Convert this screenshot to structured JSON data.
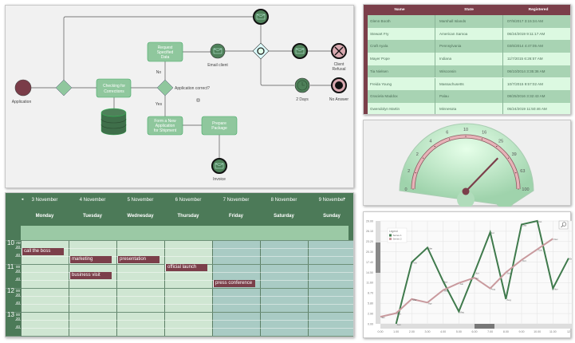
{
  "diagram": {
    "start": "Application",
    "check": [
      "Checking for",
      "Corrections"
    ],
    "request": [
      "Request",
      "Specified",
      "Data"
    ],
    "form": [
      "Form a New",
      "Application",
      "for Shipment"
    ],
    "prepare": [
      "Prepare",
      "Package"
    ],
    "invoice": "Invoice",
    "email": "Email client",
    "question": "Application correct?",
    "no": "No",
    "yes": "Yes",
    "refusal": [
      "Client",
      "Refusal"
    ],
    "timer": "2 Days",
    "noanswer": "No Answer"
  },
  "grid": {
    "columns": [
      "Name",
      "State",
      "Registered"
    ],
    "rows": [
      [
        "Glenn Booth",
        "Marshall Islands",
        "07/9/2017 3:15:34 AM"
      ],
      [
        "Stewart Fry",
        "American Samoa",
        "06/24/2019 9:11:17 AM"
      ],
      [
        "Craft Ayala",
        "Pennsylvania",
        "03/6/2014 4:47:05 AM"
      ],
      [
        "Mayer Pope",
        "Indiana",
        "11/7/2015 6:26:57 AM"
      ],
      [
        "Tia Nielsen",
        "Wisconsin",
        "06/10/2014 3:35:36 AM"
      ],
      [
        "Freida Young",
        "Massachusetts",
        "10/7/2015 9:57:02 AM"
      ],
      [
        "Graciela Maddox",
        "Palau",
        "08/25/2016 3:32:43 AM"
      ],
      [
        "Gwendolyn Martin",
        "Minnesota",
        "05/24/2019 11:50:46 AM"
      ]
    ]
  },
  "gauge": {
    "labels": [
      "0",
      "2",
      "2",
      "4",
      "6",
      "10",
      "16",
      "25",
      "39",
      "63",
      "100"
    ],
    "value": 30,
    "scale": "log"
  },
  "scheduler": {
    "days": [
      [
        "3 November",
        "Monday"
      ],
      [
        "4 November",
        "Tuesday"
      ],
      [
        "5 November",
        "Wednesday"
      ],
      [
        "6 November",
        "Thursday"
      ],
      [
        "7 November",
        "Friday"
      ],
      [
        "8 November",
        "Saturday"
      ],
      [
        "9 November",
        "Sunday"
      ]
    ],
    "hours": [
      "10",
      "11",
      "12",
      "13"
    ],
    "ampm": "AM",
    "minutes": [
      "00",
      "20",
      "40"
    ],
    "events": [
      {
        "title": "call the boss",
        "day": 0,
        "start": "10:20"
      },
      {
        "title": "marketing",
        "day": 1,
        "start": "10:40"
      },
      {
        "title": "presentation",
        "day": 2,
        "start": "10:40"
      },
      {
        "title": "business visit",
        "day": 1,
        "start": "11:20"
      },
      {
        "title": "official launch",
        "day": 3,
        "start": "11:00"
      },
      {
        "title": "press conference",
        "day": 4,
        "start": "11:40"
      }
    ]
  },
  "chart_data": {
    "type": "line",
    "x": [
      0,
      1,
      2,
      3,
      4,
      5,
      6,
      7,
      8,
      9,
      10,
      11,
      12
    ],
    "ylim": [
      0,
      29
    ],
    "xlim": [
      0,
      12
    ],
    "yticks": [
      "0.00",
      "2.90",
      "5.80",
      "8.70",
      "11.60",
      "14.50",
      "17.40",
      "20.30",
      "23.20",
      "26.10",
      "29.00"
    ],
    "xticks": [
      "0.00",
      "1.00",
      "2.00",
      "3.00",
      "4.00",
      "5.00",
      "6.00",
      "7.00",
      "8.00",
      "9.00",
      "10.00",
      "11.00",
      "12"
    ],
    "legend": {
      "title": "Legend",
      "position": "top-left"
    },
    "series": [
      {
        "name": "Series 1",
        "color": "#3f7a4c",
        "x": [
          1,
          2,
          3,
          4,
          5,
          6,
          7,
          8,
          9,
          10,
          11,
          12
        ],
        "values": [
          0,
          17.4,
          21.5,
          12,
          3.5,
          14.5,
          25.8,
          7,
          28,
          29,
          10,
          18.5
        ],
        "labels": [
          "Jan",
          "Feb",
          "Mar",
          "Apr",
          "May",
          "Jun",
          "Jul",
          "Aug",
          "Sep",
          "Oct",
          "Nov",
          "Dec"
        ]
      },
      {
        "name": "Series 2",
        "color": "#c99a9e",
        "x": [
          0,
          1,
          2,
          3,
          4,
          5,
          6,
          7,
          8,
          9,
          10,
          11
        ],
        "values": [
          2,
          3,
          7,
          6,
          9.5,
          11.5,
          13,
          10,
          14.5,
          18,
          21,
          24
        ],
        "labels": [
          "Jan",
          "Feb",
          "Mar",
          "Apr",
          "May",
          "Jun",
          "Jul",
          "Aug",
          "Sep",
          "Oct",
          "Nov",
          "Dec"
        ]
      }
    ]
  }
}
